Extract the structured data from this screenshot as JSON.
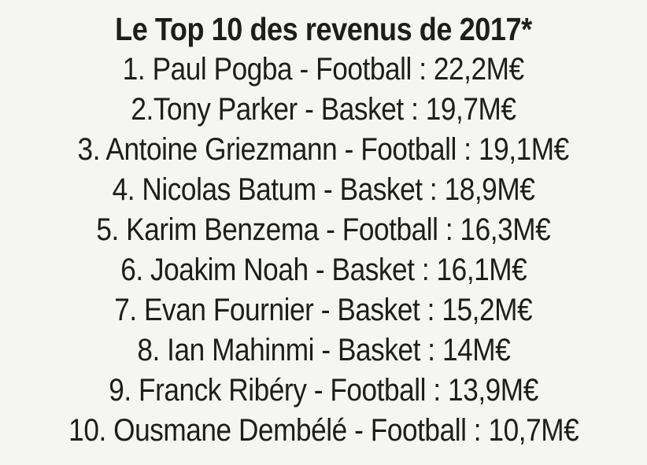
{
  "page": {
    "background_color": "#f5f5f4",
    "text_color": "#1d1d1b"
  },
  "title": "Le Top 10 des revenus de 2017*",
  "ranking": {
    "items": [
      {
        "rank": 1,
        "name": "Paul Pogba",
        "sport": "Football",
        "amount": "22,2M€",
        "text": "1. Paul Pogba - Football : 22,2M€"
      },
      {
        "rank": 2,
        "name": "Tony Parker",
        "sport": "Basket",
        "amount": "19,7M€",
        "text": "2.Tony Parker - Basket : 19,7M€"
      },
      {
        "rank": 3,
        "name": "Antoine Griezmann",
        "sport": "Football",
        "amount": "19,1M€",
        "text": "3. Antoine Griezmann - Football : 19,1M€"
      },
      {
        "rank": 4,
        "name": "Nicolas Batum",
        "sport": "Basket",
        "amount": "18,9M€",
        "text": "4. Nicolas Batum - Basket : 18,9M€"
      },
      {
        "rank": 5,
        "name": "Karim Benzema",
        "sport": "Football",
        "amount": "16,3M€",
        "text": "5. Karim Benzema - Football : 16,3M€"
      },
      {
        "rank": 6,
        "name": "Joakim Noah",
        "sport": "Basket",
        "amount": "16,1M€",
        "text": "6. Joakim Noah - Basket : 16,1M€"
      },
      {
        "rank": 7,
        "name": "Evan Fournier",
        "sport": "Basket",
        "amount": "15,2M€",
        "text": "7. Evan Fournier - Basket : 15,2M€"
      },
      {
        "rank": 8,
        "name": "Ian Mahinmi",
        "sport": "Basket",
        "amount": "14M€",
        "text": "8. Ian Mahinmi - Basket : 14M€"
      },
      {
        "rank": 9,
        "name": "Franck Ribéry",
        "sport": "Football",
        "amount": "13,9M€",
        "text": "9. Franck Ribéry - Football : 13,9M€"
      },
      {
        "rank": 10,
        "name": "Ousmane Dembélé",
        "sport": "Football",
        "amount": "10,7M€",
        "text": "10. Ousmane Dembélé - Football : 10,7M€"
      }
    ]
  }
}
